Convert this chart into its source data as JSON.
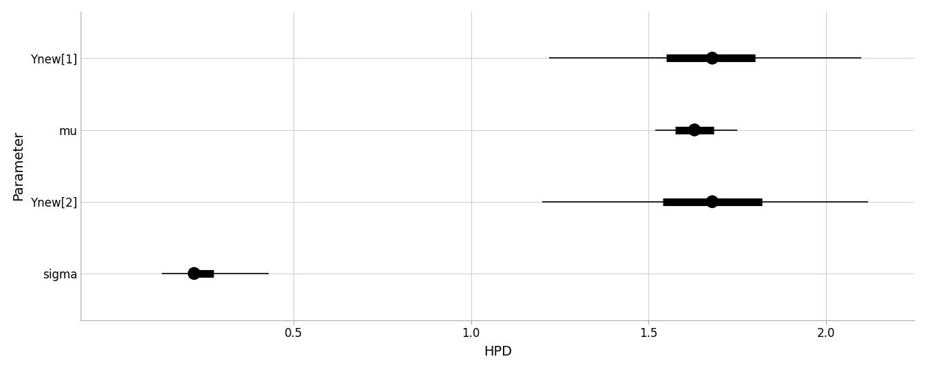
{
  "parameters": [
    "Ynew[1]",
    "mu",
    "Ynew[2]",
    "sigma"
  ],
  "median": [
    1.68,
    1.63,
    1.68,
    0.22
  ],
  "q25": [
    1.55,
    1.575,
    1.54,
    0.205
  ],
  "q75": [
    1.8,
    1.685,
    1.82,
    0.275
  ],
  "q025": [
    1.22,
    1.52,
    1.2,
    0.13
  ],
  "q975": [
    2.1,
    1.75,
    2.12,
    0.43
  ],
  "xlabel": "HPD",
  "ylabel": "Parameter",
  "xlim": [
    -0.1,
    2.25
  ],
  "xticks": [
    0.5,
    1.0,
    1.5,
    2.0
  ],
  "xtick_labels": [
    "0.5",
    "1.0",
    "1.5",
    "2.0"
  ],
  "bg_color": "#ffffff",
  "grid_color": "#d0d0d0",
  "bar_color": "#000000",
  "thin_lw": 1.2,
  "thick_lw": 8.0,
  "dot_size": 180,
  "xlabel_fontsize": 14,
  "ylabel_fontsize": 14,
  "tick_fontsize": 12
}
